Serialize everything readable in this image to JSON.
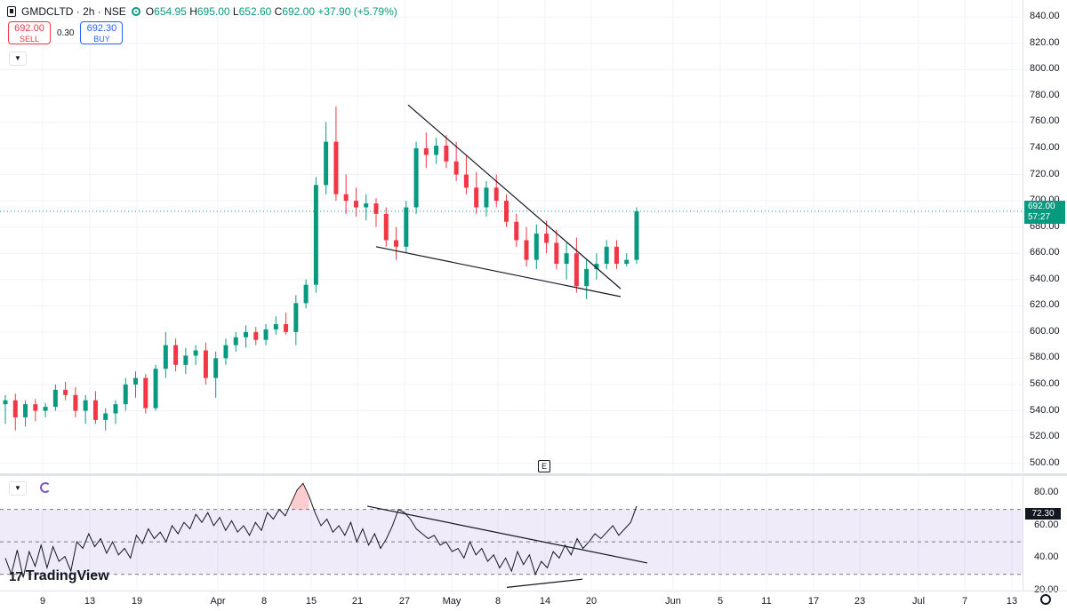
{
  "header": {
    "symbol": "GMDCLTD · 2h · NSE",
    "open_label": "O",
    "open": "654.95",
    "high_label": "H",
    "high": "695.00",
    "low_label": "L",
    "low": "652.60",
    "close_label": "C",
    "close": "692.00",
    "change": "+37.90 (+5.79%)"
  },
  "trade": {
    "sell_price": "692.00",
    "sell_label": "SELL",
    "spread": "0.30",
    "buy_price": "692.30",
    "buy_label": "BUY"
  },
  "price_badge": {
    "price": "692.00",
    "countdown": "57:27"
  },
  "rsi_badge": "72.30",
  "event_marker": "E",
  "logo_text": "TradingView",
  "colors": {
    "up": "#089981",
    "down": "#f23645",
    "rsi_line": "#131722",
    "rsi_band": "#7e57c2",
    "grid": "#f0f3fa"
  },
  "icons": [
    "symbol-icon",
    "status-dot-icon",
    "chevron-down-icon",
    "refresh-icon",
    "settings-icon",
    "tradingview-logo-icon"
  ],
  "chart_data": [
    {
      "type": "line",
      "kind": "candlestick",
      "title": "",
      "xlabel": "",
      "ylabel": "",
      "ylim": [
        493,
        853
      ],
      "y_ticks": [
        "840.00",
        "820.00",
        "800.00",
        "780.00",
        "760.00",
        "740.00",
        "720.00",
        "700.00",
        "680.00",
        "660.00",
        "640.00",
        "620.00",
        "600.00",
        "580.00",
        "560.00",
        "540.00",
        "520.00",
        "500.00"
      ],
      "x_ticks": [
        "9",
        "13",
        "19",
        "Apr",
        "8",
        "15",
        "21",
        "27",
        "May",
        "8",
        "14",
        "20",
        "Jun",
        "5",
        "11",
        "17",
        "23",
        "Jul",
        "7",
        "13"
      ],
      "grid": true,
      "series": [
        {
          "values": [
            [
              545,
              552,
              530,
              548
            ],
            [
              548,
              553,
              525,
              535
            ],
            [
              535,
              548,
              528,
              545
            ],
            [
              545,
              549,
              532,
              540
            ],
            [
              540,
              546,
              535,
              543
            ],
            [
              543,
              560,
              540,
              556
            ],
            [
              556,
              562,
              548,
              552
            ],
            [
              552,
              558,
              535,
              540
            ],
            [
              540,
              552,
              530,
              548
            ],
            [
              548,
              555,
              530,
              533
            ],
            [
              533,
              542,
              525,
              538
            ],
            [
              538,
              548,
              530,
              545
            ],
            [
              545,
              565,
              540,
              560
            ],
            [
              560,
              570,
              550,
              565
            ],
            [
              565,
              568,
              538,
              542
            ],
            [
              542,
              575,
              540,
              572
            ],
            [
              572,
              600,
              565,
              590
            ],
            [
              590,
              595,
              570,
              575
            ],
            [
              575,
              588,
              568,
              582
            ],
            [
              582,
              590,
              575,
              586
            ],
            [
              586,
              592,
              560,
              565
            ],
            [
              565,
              585,
              550,
              580
            ],
            [
              580,
              595,
              575,
              590
            ],
            [
              590,
              600,
              585,
              596
            ],
            [
              596,
              605,
              588,
              600
            ],
            [
              600,
              604,
              590,
              594
            ],
            [
              594,
              606,
              590,
              602
            ],
            [
              602,
              612,
              598,
              606
            ],
            [
              606,
              615,
              598,
              600
            ],
            [
              600,
              628,
              590,
              622
            ],
            [
              622,
              640,
              618,
              636
            ],
            [
              636,
              718,
              630,
              712
            ],
            [
              712,
              760,
              705,
              745
            ],
            [
              745,
              772,
              700,
              705
            ],
            [
              705,
              720,
              690,
              700
            ],
            [
              700,
              710,
              688,
              695
            ],
            [
              695,
              705,
              685,
              698
            ],
            [
              698,
              702,
              680,
              690
            ],
            [
              690,
              695,
              665,
              670
            ],
            [
              670,
              680,
              655,
              665
            ],
            [
              665,
              700,
              660,
              695
            ],
            [
              695,
              745,
              690,
              740
            ],
            [
              740,
              752,
              725,
              735
            ],
            [
              735,
              748,
              728,
              742
            ],
            [
              742,
              750,
              725,
              730
            ],
            [
              730,
              745,
              715,
              720
            ],
            [
              720,
              735,
              705,
              710
            ],
            [
              710,
              722,
              690,
              695
            ],
            [
              695,
              715,
              688,
              710
            ],
            [
              710,
              720,
              695,
              700
            ],
            [
              700,
              705,
              680,
              684
            ],
            [
              684,
              690,
              665,
              670
            ],
            [
              670,
              680,
              650,
              655
            ],
            [
              655,
              682,
              648,
              675
            ],
            [
              675,
              685,
              660,
              668
            ],
            [
              668,
              678,
              648,
              652
            ],
            [
              652,
              668,
              640,
              660
            ],
            [
              660,
              672,
              630,
              635
            ],
            [
              635,
              655,
              625,
              648
            ],
            [
              648,
              660,
              640,
              652
            ],
            [
              652,
              670,
              648,
              665
            ],
            [
              665,
              670,
              648,
              652
            ],
            [
              652,
              660,
              650,
              655
            ],
            [
              655,
              695,
              652,
              692
            ]
          ]
        }
      ]
    },
    {
      "type": "line",
      "title": "",
      "ylim": [
        20,
        90
      ],
      "y_ticks": [
        "80.00",
        "60.00",
        "40.00",
        "20.00"
      ],
      "bands": [
        30,
        50,
        70
      ],
      "series": [
        {
          "values": [
            40,
            30,
            45,
            28,
            44,
            35,
            48,
            34,
            47,
            38,
            41,
            32,
            50,
            46,
            55,
            47,
            52,
            43,
            50,
            42,
            46,
            40,
            54,
            49,
            58,
            52,
            56,
            50,
            60,
            55,
            62,
            58,
            67,
            62,
            68,
            60,
            65,
            57,
            63,
            56,
            60,
            54,
            62,
            57,
            68,
            64,
            70,
            66,
            74,
            82,
            86,
            78,
            68,
            60,
            64,
            56,
            60,
            54,
            62,
            50,
            58,
            48,
            55,
            46,
            52,
            60,
            70,
            68,
            64,
            58,
            55,
            52,
            54,
            48,
            50,
            44,
            46,
            40,
            50,
            42,
            46,
            38,
            42,
            34,
            40,
            32,
            44,
            36,
            42,
            30,
            38,
            34,
            44,
            40,
            48,
            42,
            52,
            46,
            50,
            55,
            52,
            56,
            60,
            54,
            58,
            62,
            72
          ]
        }
      ]
    }
  ]
}
